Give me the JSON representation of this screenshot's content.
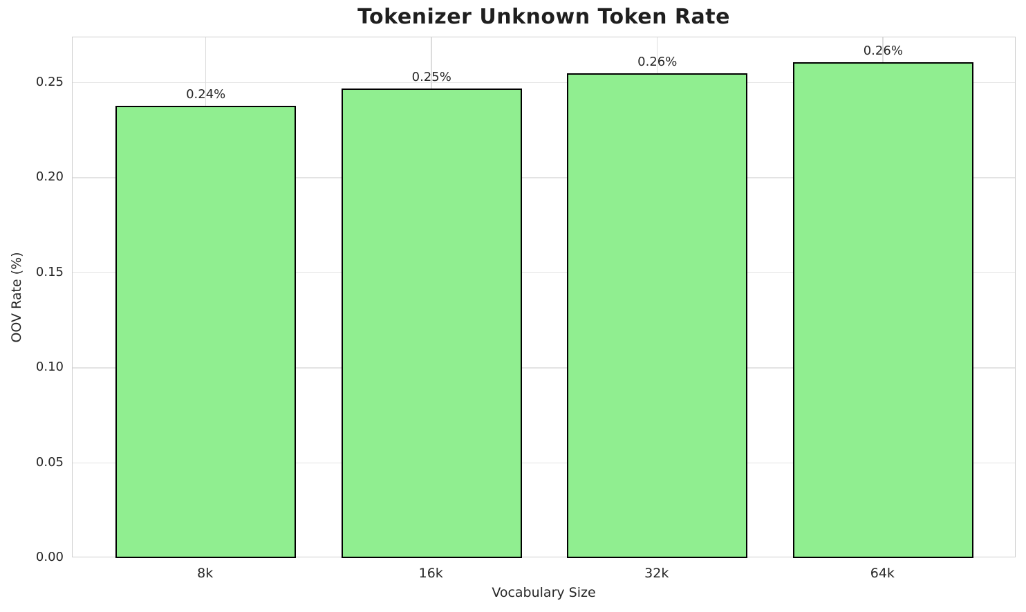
{
  "figure": {
    "background": "#ffffff"
  },
  "chart_data": {
    "type": "bar",
    "title": "Tokenizer Unknown Token Rate",
    "xlabel": "Vocabulary Size",
    "ylabel": "OOV Rate (%)",
    "categories": [
      "8k",
      "16k",
      "32k",
      "64k"
    ],
    "values": [
      0.238,
      0.247,
      0.255,
      0.261
    ],
    "bar_labels": [
      "0.24%",
      "0.25%",
      "0.26%",
      "0.26%"
    ],
    "yticks": [
      0.0,
      0.05,
      0.1,
      0.15,
      0.2,
      0.25
    ],
    "ytick_labels": [
      "0.00",
      "0.05",
      "0.10",
      "0.15",
      "0.20",
      "0.25"
    ],
    "ylim": [
      0,
      0.274
    ],
    "xlim": [
      -0.59,
      3.59
    ],
    "bar_width": 0.8,
    "grid": true,
    "legend": null,
    "colors": {
      "bar_fill": "#90ee90",
      "bar_edge": "#000000",
      "grid_h": "#e3e3e3",
      "grid_v": "#dcdcdc",
      "spine": "#cccccc",
      "text": "#262626",
      "title_text": "#1f1f1f"
    }
  }
}
